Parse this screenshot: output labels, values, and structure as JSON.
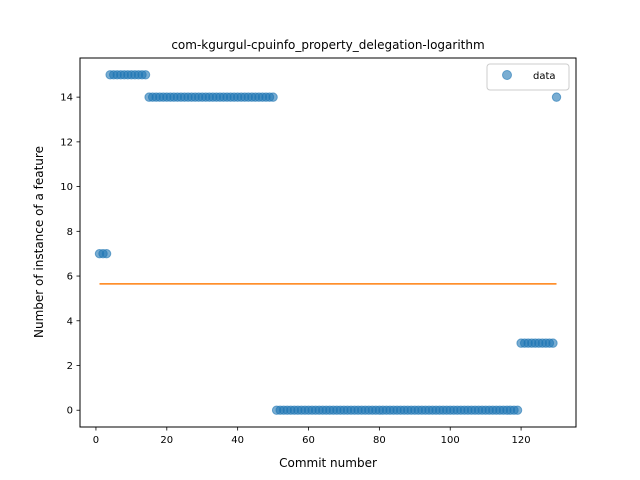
{
  "chart_data": {
    "type": "scatter",
    "title": "com-kgurgul-cpuinfo_property_delegation-logarithm",
    "xlabel": "Commit number",
    "ylabel": "Number of instance of a feature",
    "xlim": [
      -4.5,
      135.5
    ],
    "ylim": [
      -0.75,
      15.75
    ],
    "xticks": [
      0,
      20,
      40,
      60,
      80,
      100,
      120
    ],
    "yticks": [
      0,
      2,
      4,
      6,
      8,
      10,
      12,
      14
    ],
    "grid": false,
    "legend": {
      "position": "top-right",
      "entries": [
        "data"
      ]
    },
    "colors": {
      "data": "#1f77b4",
      "fit": "#ff7f0e"
    },
    "series": [
      {
        "name": "data",
        "kind": "scatter",
        "x": [
          1,
          2,
          3,
          4,
          5,
          6,
          7,
          8,
          9,
          10,
          11,
          12,
          13,
          14,
          15,
          16,
          17,
          18,
          19,
          20,
          21,
          22,
          23,
          24,
          25,
          26,
          27,
          28,
          29,
          30,
          31,
          32,
          33,
          34,
          35,
          36,
          37,
          38,
          39,
          40,
          41,
          42,
          43,
          44,
          45,
          46,
          47,
          48,
          49,
          50,
          51,
          52,
          53,
          54,
          55,
          56,
          57,
          58,
          59,
          60,
          61,
          62,
          63,
          64,
          65,
          66,
          67,
          68,
          69,
          70,
          71,
          72,
          73,
          74,
          75,
          76,
          77,
          78,
          79,
          80,
          81,
          82,
          83,
          84,
          85,
          86,
          87,
          88,
          89,
          90,
          91,
          92,
          93,
          94,
          95,
          96,
          97,
          98,
          99,
          100,
          101,
          102,
          103,
          104,
          105,
          106,
          107,
          108,
          109,
          110,
          111,
          112,
          113,
          114,
          115,
          116,
          117,
          118,
          119,
          120,
          121,
          122,
          123,
          124,
          125,
          126,
          127,
          128,
          129,
          130
        ],
        "y": [
          7,
          7,
          7,
          15,
          15,
          15,
          15,
          15,
          15,
          15,
          15,
          15,
          15,
          15,
          14,
          14,
          14,
          14,
          14,
          14,
          14,
          14,
          14,
          14,
          14,
          14,
          14,
          14,
          14,
          14,
          14,
          14,
          14,
          14,
          14,
          14,
          14,
          14,
          14,
          14,
          14,
          14,
          14,
          14,
          14,
          14,
          14,
          14,
          14,
          14,
          0,
          0,
          0,
          0,
          0,
          0,
          0,
          0,
          0,
          0,
          0,
          0,
          0,
          0,
          0,
          0,
          0,
          0,
          0,
          0,
          0,
          0,
          0,
          0,
          0,
          0,
          0,
          0,
          0,
          0,
          0,
          0,
          0,
          0,
          0,
          0,
          0,
          0,
          0,
          0,
          0,
          0,
          0,
          0,
          0,
          0,
          0,
          0,
          0,
          0,
          0,
          0,
          0,
          0,
          0,
          0,
          0,
          0,
          0,
          0,
          0,
          0,
          0,
          0,
          0,
          0,
          0,
          0,
          0,
          3,
          3,
          3,
          3,
          3,
          3,
          3,
          3,
          3,
          3,
          14
        ]
      },
      {
        "kind": "line",
        "x": [
          1,
          130
        ],
        "y": [
          5.65,
          5.65
        ]
      }
    ]
  }
}
